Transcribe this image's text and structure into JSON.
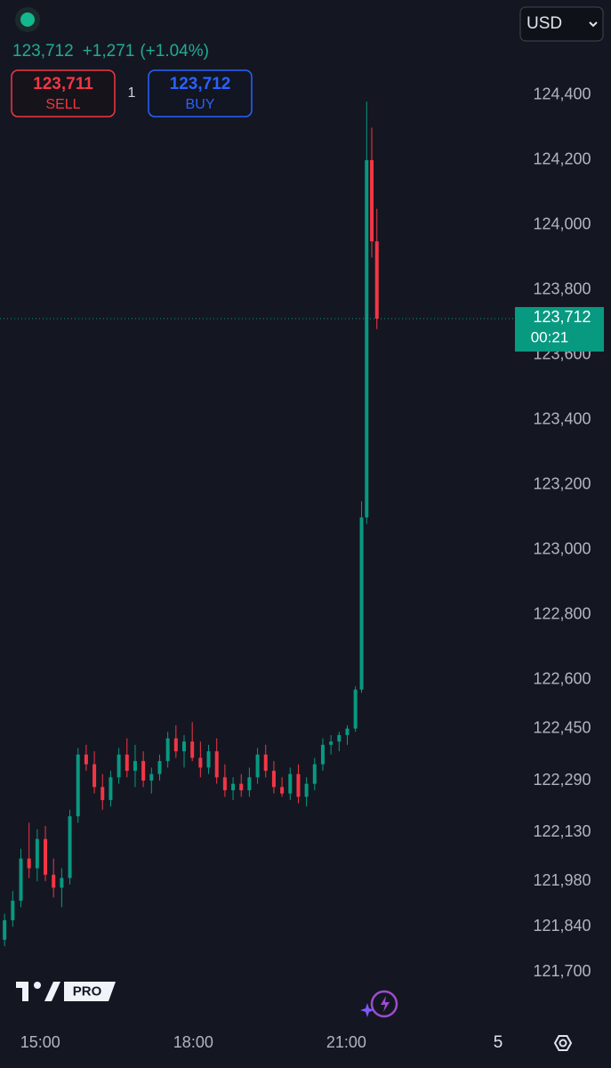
{
  "header": {
    "price": "123,712",
    "change": "+1,271",
    "change_pct": "(+1.04%)",
    "currency": "USD"
  },
  "trade": {
    "sell_price": "123,711",
    "sell_label": "SELL",
    "quantity": "1",
    "buy_price": "123,712",
    "buy_label": "BUY"
  },
  "logo": "PRO",
  "timeframe": "5",
  "chart_data": {
    "type": "candlestick",
    "x": [
      14.3,
      14.46,
      14.62,
      14.78,
      14.94,
      15.1,
      15.26,
      15.42,
      15.58,
      15.74,
      15.9,
      16.06,
      16.22,
      16.38,
      16.54,
      16.7,
      16.86,
      17.02,
      17.18,
      17.34,
      17.5,
      17.66,
      17.82,
      17.98,
      18.14,
      18.3,
      18.46,
      18.62,
      18.78,
      18.94,
      19.1,
      19.26,
      19.42,
      19.58,
      19.74,
      19.9,
      20.06,
      20.22,
      20.38,
      20.54,
      20.7,
      20.86,
      21.02,
      21.18,
      21.3,
      21.4,
      21.5,
      21.6
    ],
    "open": [
      121800,
      121860,
      121920,
      122050,
      122020,
      122110,
      122000,
      121960,
      121990,
      122180,
      122370,
      122340,
      122270,
      122230,
      122300,
      122370,
      122320,
      122350,
      122290,
      122310,
      122350,
      122420,
      122380,
      122410,
      122360,
      122330,
      122380,
      122300,
      122260,
      122280,
      122260,
      122300,
      122370,
      122320,
      122270,
      122250,
      122310,
      122240,
      122280,
      122340,
      122400,
      122410,
      122430,
      122450,
      122570,
      123100,
      124200,
      123950
    ],
    "high": [
      121880,
      121950,
      122080,
      122160,
      122140,
      122150,
      122050,
      122020,
      122200,
      122390,
      122400,
      122380,
      122310,
      122320,
      122390,
      122420,
      122400,
      122380,
      122330,
      122370,
      122440,
      122460,
      122430,
      122470,
      122410,
      122400,
      122420,
      122340,
      122300,
      122310,
      122330,
      122390,
      122400,
      122350,
      122300,
      122330,
      122340,
      122300,
      122360,
      122420,
      122430,
      122440,
      122460,
      122580,
      123150,
      124380,
      124300,
      124050
    ],
    "low": [
      121780,
      121840,
      121900,
      121990,
      121980,
      121980,
      121930,
      121900,
      121970,
      122160,
      122320,
      122250,
      122200,
      122210,
      122280,
      122300,
      122270,
      122270,
      122250,
      122290,
      122330,
      122360,
      122330,
      122350,
      122300,
      122310,
      122280,
      122240,
      122230,
      122240,
      122240,
      122280,
      122300,
      122250,
      122240,
      122230,
      122220,
      122210,
      122260,
      122320,
      122370,
      122380,
      122400,
      122440,
      122560,
      123080,
      123900,
      123680
    ],
    "close": [
      121860,
      121920,
      122050,
      122020,
      122110,
      122000,
      121960,
      121990,
      122180,
      122370,
      122340,
      122270,
      122230,
      122300,
      122370,
      122320,
      122350,
      122290,
      122310,
      122350,
      122420,
      122380,
      122410,
      122360,
      122330,
      122380,
      122300,
      122260,
      122280,
      122260,
      122300,
      122370,
      122320,
      122270,
      122250,
      122310,
      122240,
      122280,
      122340,
      122400,
      122410,
      122430,
      122450,
      122570,
      123100,
      124200,
      123950,
      123712
    ],
    "up_color": "#089981",
    "down_color": "#f23645",
    "xlim": [
      14.21,
      24.29
    ],
    "ylim": [
      121542,
      124693
    ],
    "xticks": [
      {
        "value": 15,
        "label": "15:00"
      },
      {
        "value": 18,
        "label": "18:00"
      },
      {
        "value": 21,
        "label": "21:00"
      }
    ],
    "yticks": [
      {
        "value": 124400,
        "label": "124,400"
      },
      {
        "value": 124200,
        "label": "124,200"
      },
      {
        "value": 124000,
        "label": "124,000"
      },
      {
        "value": 123800,
        "label": "123,800"
      },
      {
        "value": 123600,
        "label": "123,600"
      },
      {
        "value": 123400,
        "label": "123,400"
      },
      {
        "value": 123200,
        "label": "123,200"
      },
      {
        "value": 123000,
        "label": "123,000"
      },
      {
        "value": 122800,
        "label": "122,800"
      },
      {
        "value": 122600,
        "label": "122,600"
      },
      {
        "value": 122450,
        "label": "122,450"
      },
      {
        "value": 122290,
        "label": "122,290"
      },
      {
        "value": 122130,
        "label": "122,130"
      },
      {
        "value": 121980,
        "label": "121,980"
      },
      {
        "value": 121840,
        "label": "121,840"
      },
      {
        "value": 121700,
        "label": "121,700"
      }
    ],
    "last_price": {
      "value": 123712,
      "label": "123,712"
    },
    "countdown": "00:21"
  }
}
